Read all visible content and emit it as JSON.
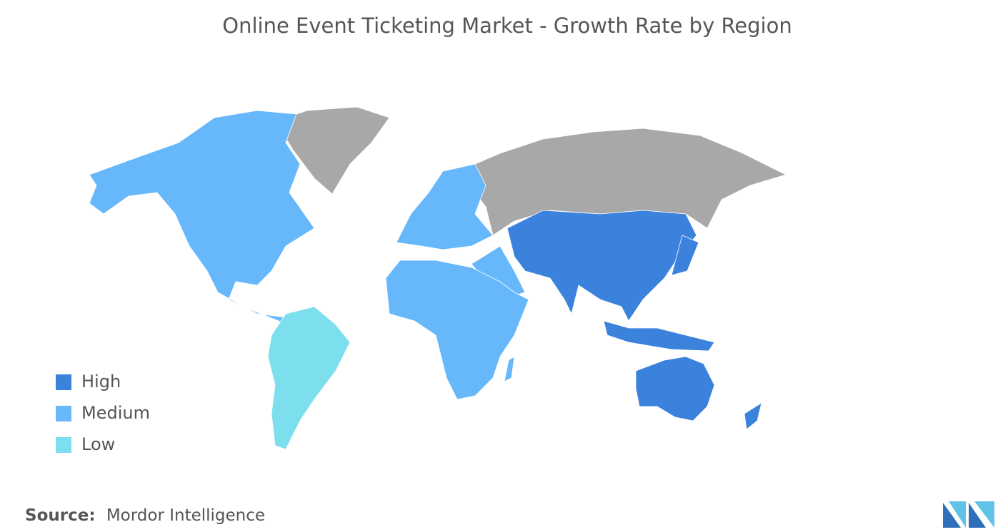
{
  "title": "Online Event Ticketing Market - Growth Rate by Region",
  "legend": [
    {
      "label": "High",
      "color": "#3b82dc"
    },
    {
      "label": "Medium",
      "color": "#66b8fa"
    },
    {
      "label": "Low",
      "color": "#7ddfee"
    }
  ],
  "source": {
    "label": "Source:",
    "text": "Mordor Intelligence"
  }
}
